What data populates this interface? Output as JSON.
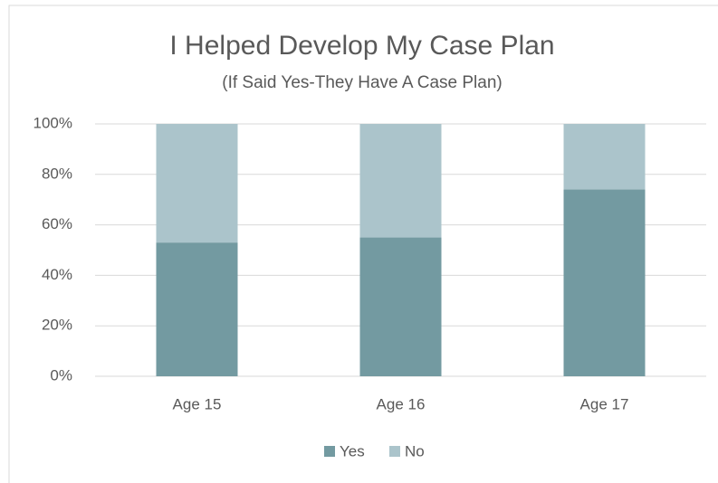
{
  "chart_data": {
    "type": "stacked_bar",
    "title": "I Helped Develop My Case Plan",
    "subtitle": "(If Said Yes-They Have A Case Plan)",
    "categories": [
      "Age 15",
      "Age 16",
      "Age 17"
    ],
    "series": [
      {
        "name": "Yes",
        "color": "#739aa1",
        "values": [
          53,
          55,
          74
        ]
      },
      {
        "name": "No",
        "color": "#abc4cb",
        "values": [
          47,
          45,
          26
        ]
      }
    ],
    "ylim": [
      0,
      100
    ],
    "yticks": [
      {
        "value": 0,
        "label": "0%"
      },
      {
        "value": 20,
        "label": "20%"
      },
      {
        "value": 40,
        "label": "40%"
      },
      {
        "value": 60,
        "label": "60%"
      },
      {
        "value": 80,
        "label": "80%"
      },
      {
        "value": 100,
        "label": "100%"
      }
    ],
    "grid": true,
    "legend": "bottom"
  }
}
